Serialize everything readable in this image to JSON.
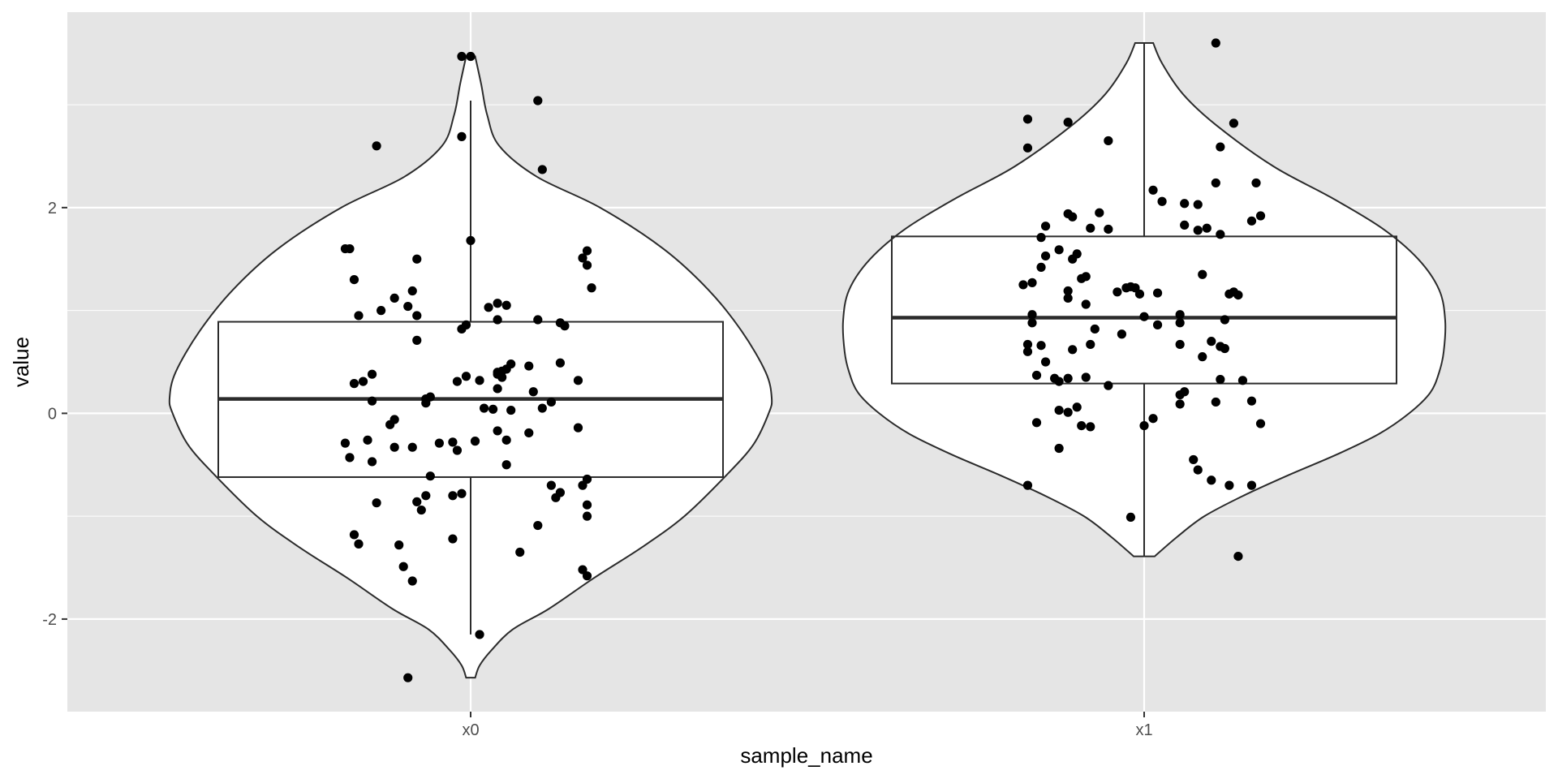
{
  "chart_data": {
    "type": "violin",
    "overlays": [
      "boxplot",
      "jitter"
    ],
    "xlabel": "sample_name",
    "ylabel": "value",
    "categories": [
      "x0",
      "x1"
    ],
    "ylim": [
      -2.9,
      3.9
    ],
    "yticks": [
      -2,
      0,
      2
    ],
    "grid": true,
    "legend": "none",
    "colors": {
      "panel": "#e5e5e5",
      "grid": "#ffffff",
      "outline": "#2b2b2b",
      "points": "#000000",
      "fill": "#ffffff",
      "tick_text": "#4d4d4d"
    },
    "groups": [
      {
        "name": "x0",
        "box": {
          "q1": -0.62,
          "median": 0.14,
          "q3": 0.89,
          "whisker_low": -2.15,
          "whisker_high": 3.04
        },
        "violin": {
          "y": [
            -2.57,
            -2.45,
            -2.3,
            -2.1,
            -1.9,
            -1.6,
            -1.3,
            -1.0,
            -0.6,
            -0.3,
            0.0,
            0.15,
            0.4,
            0.8,
            1.2,
            1.6,
            2.0,
            2.3,
            2.6,
            2.9,
            3.2,
            3.47
          ],
          "width": [
            0.015,
            0.03,
            0.07,
            0.14,
            0.26,
            0.41,
            0.57,
            0.71,
            0.85,
            0.94,
            0.99,
            1.0,
            0.98,
            0.9,
            0.79,
            0.64,
            0.43,
            0.22,
            0.095,
            0.055,
            0.035,
            0.015
          ]
        },
        "points": [
          [
            -0.14,
            -2.57
          ],
          [
            0.02,
            -2.15
          ],
          [
            -0.15,
            -1.49
          ],
          [
            -0.13,
            -1.63
          ],
          [
            -0.16,
            -1.28
          ],
          [
            -0.04,
            -1.22
          ],
          [
            -0.26,
            -1.18
          ],
          [
            -0.25,
            -1.27
          ],
          [
            -0.21,
            -0.87
          ],
          [
            -0.12,
            -0.86
          ],
          [
            -0.11,
            -0.94
          ],
          [
            -0.1,
            -0.8
          ],
          [
            -0.04,
            -0.8
          ],
          [
            -0.02,
            -0.78
          ],
          [
            -0.09,
            -0.61
          ],
          [
            0.11,
            -1.35
          ],
          [
            0.15,
            -1.09
          ],
          [
            0.18,
            -0.7
          ],
          [
            0.19,
            -0.82
          ],
          [
            0.2,
            -0.77
          ],
          [
            0.25,
            -0.7
          ],
          [
            0.26,
            -0.64
          ],
          [
            0.26,
            -0.89
          ],
          [
            0.26,
            -1.0
          ],
          [
            0.25,
            -1.52
          ],
          [
            0.26,
            -1.58
          ],
          [
            -0.28,
            -0.29
          ],
          [
            -0.27,
            -0.43
          ],
          [
            -0.23,
            -0.26
          ],
          [
            -0.22,
            -0.47
          ],
          [
            -0.17,
            -0.33
          ],
          [
            -0.17,
            -0.06
          ],
          [
            -0.18,
            -0.11
          ],
          [
            -0.13,
            -0.33
          ],
          [
            -0.07,
            -0.29
          ],
          [
            -0.04,
            -0.28
          ],
          [
            -0.03,
            -0.36
          ],
          [
            0.01,
            -0.27
          ],
          [
            0.06,
            -0.17
          ],
          [
            0.08,
            -0.26
          ],
          [
            0.08,
            -0.5
          ],
          [
            0.13,
            -0.19
          ],
          [
            0.24,
            -0.14
          ],
          [
            -0.26,
            0.29
          ],
          [
            -0.24,
            0.31
          ],
          [
            -0.22,
            0.38
          ],
          [
            -0.22,
            0.12
          ],
          [
            -0.1,
            0.1
          ],
          [
            -0.1,
            0.14
          ],
          [
            -0.09,
            0.16
          ],
          [
            -0.03,
            0.31
          ],
          [
            -0.01,
            0.36
          ],
          [
            0.02,
            0.32
          ],
          [
            0.03,
            0.05
          ],
          [
            0.05,
            0.04
          ],
          [
            0.06,
            0.24
          ],
          [
            0.06,
            0.4
          ],
          [
            0.06,
            0.38
          ],
          [
            0.07,
            0.35
          ],
          [
            0.07,
            0.41
          ],
          [
            0.08,
            0.43
          ],
          [
            0.09,
            0.48
          ],
          [
            0.09,
            0.03
          ],
          [
            0.13,
            0.46
          ],
          [
            0.14,
            0.21
          ],
          [
            0.16,
            0.05
          ],
          [
            0.18,
            0.11
          ],
          [
            0.2,
            0.49
          ],
          [
            0.24,
            0.32
          ],
          [
            -0.25,
            0.95
          ],
          [
            -0.28,
            1.6
          ],
          [
            -0.27,
            1.6
          ],
          [
            -0.26,
            1.3
          ],
          [
            -0.2,
            1.0
          ],
          [
            -0.17,
            1.12
          ],
          [
            -0.14,
            1.04
          ],
          [
            -0.13,
            1.19
          ],
          [
            -0.12,
            0.95
          ],
          [
            -0.12,
            0.71
          ],
          [
            -0.02,
            0.82
          ],
          [
            -0.01,
            0.86
          ],
          [
            0.0,
            1.68
          ],
          [
            -0.12,
            1.5
          ],
          [
            0.06,
            0.91
          ],
          [
            0.06,
            1.07
          ],
          [
            0.08,
            1.05
          ],
          [
            0.04,
            1.03
          ],
          [
            0.15,
            0.91
          ],
          [
            0.2,
            0.88
          ],
          [
            0.21,
            0.85
          ],
          [
            0.26,
            1.44
          ],
          [
            0.25,
            1.51
          ],
          [
            0.26,
            1.58
          ],
          [
            0.27,
            1.22
          ],
          [
            -0.02,
            2.69
          ],
          [
            -0.21,
            2.6
          ],
          [
            0.15,
            3.04
          ],
          [
            0.16,
            2.37
          ],
          [
            -0.02,
            3.47
          ],
          [
            0.0,
            3.47
          ]
        ]
      },
      {
        "name": "x1",
        "box": {
          "q1": 0.29,
          "median": 0.93,
          "q3": 1.72,
          "whisker_low": -1.39,
          "whisker_high": 3.6
        },
        "violin": {
          "y": [
            -1.39,
            -1.2,
            -1.0,
            -0.8,
            -0.6,
            -0.4,
            -0.2,
            0.0,
            0.2,
            0.4,
            0.6,
            0.9,
            1.2,
            1.5,
            1.8,
            2.1,
            2.4,
            2.8,
            3.1,
            3.4,
            3.6
          ],
          "width": [
            0.035,
            0.11,
            0.2,
            0.33,
            0.48,
            0.64,
            0.78,
            0.88,
            0.95,
            0.98,
            0.995,
            1.0,
            0.98,
            0.91,
            0.79,
            0.62,
            0.43,
            0.24,
            0.13,
            0.06,
            0.03
          ]
        },
        "points": [
          [
            0.21,
            -1.39
          ],
          [
            -0.03,
            -1.01
          ],
          [
            -0.26,
            -0.7
          ],
          [
            0.12,
            -0.55
          ],
          [
            0.15,
            -0.65
          ],
          [
            0.19,
            -0.7
          ],
          [
            0.24,
            -0.7
          ],
          [
            0.11,
            -0.45
          ],
          [
            -0.24,
            -0.09
          ],
          [
            -0.19,
            -0.34
          ],
          [
            -0.14,
            -0.12
          ],
          [
            -0.12,
            -0.13
          ],
          [
            0.0,
            -0.12
          ],
          [
            0.02,
            -0.05
          ],
          [
            0.26,
            -0.1
          ],
          [
            -0.19,
            0.03
          ],
          [
            -0.17,
            0.01
          ],
          [
            -0.15,
            0.06
          ],
          [
            -0.24,
            0.37
          ],
          [
            -0.2,
            0.34
          ],
          [
            -0.19,
            0.31
          ],
          [
            -0.17,
            0.34
          ],
          [
            -0.13,
            0.35
          ],
          [
            -0.08,
            0.27
          ],
          [
            0.08,
            0.09
          ],
          [
            0.08,
            0.18
          ],
          [
            0.09,
            0.21
          ],
          [
            0.16,
            0.11
          ],
          [
            0.24,
            0.12
          ],
          [
            0.17,
            0.33
          ],
          [
            0.22,
            0.32
          ],
          [
            -0.26,
            0.67
          ],
          [
            -0.26,
            0.6
          ],
          [
            -0.23,
            0.66
          ],
          [
            -0.22,
            0.5
          ],
          [
            -0.16,
            0.62
          ],
          [
            -0.12,
            0.67
          ],
          [
            -0.05,
            0.77
          ],
          [
            -0.25,
            0.88
          ],
          [
            -0.25,
            0.96
          ],
          [
            -0.11,
            0.82
          ],
          [
            0.0,
            0.94
          ],
          [
            0.03,
            0.86
          ],
          [
            0.08,
            0.96
          ],
          [
            0.08,
            0.88
          ],
          [
            0.08,
            0.67
          ],
          [
            0.13,
            0.55
          ],
          [
            0.15,
            0.7
          ],
          [
            0.17,
            0.65
          ],
          [
            0.18,
            0.63
          ],
          [
            0.18,
            0.91
          ],
          [
            -0.27,
            1.25
          ],
          [
            -0.25,
            1.27
          ],
          [
            -0.23,
            1.42
          ],
          [
            -0.22,
            1.53
          ],
          [
            -0.19,
            1.59
          ],
          [
            -0.17,
            1.12
          ],
          [
            -0.17,
            1.19
          ],
          [
            -0.16,
            1.5
          ],
          [
            -0.15,
            1.55
          ],
          [
            -0.14,
            1.31
          ],
          [
            -0.13,
            1.33
          ],
          [
            -0.13,
            1.06
          ],
          [
            -0.06,
            1.18
          ],
          [
            -0.04,
            1.22
          ],
          [
            -0.03,
            1.23
          ],
          [
            -0.02,
            1.22
          ],
          [
            -0.01,
            1.16
          ],
          [
            0.03,
            1.17
          ],
          [
            0.19,
            1.16
          ],
          [
            0.2,
            1.18
          ],
          [
            0.21,
            1.15
          ],
          [
            0.13,
            1.35
          ],
          [
            -0.23,
            1.71
          ],
          [
            -0.22,
            1.82
          ],
          [
            -0.17,
            1.94
          ],
          [
            -0.16,
            1.91
          ],
          [
            -0.12,
            1.8
          ],
          [
            -0.1,
            1.95
          ],
          [
            -0.08,
            1.79
          ],
          [
            0.02,
            2.17
          ],
          [
            0.04,
            2.06
          ],
          [
            0.09,
            2.04
          ],
          [
            0.12,
            2.03
          ],
          [
            0.09,
            1.83
          ],
          [
            0.12,
            1.78
          ],
          [
            0.14,
            1.8
          ],
          [
            0.17,
            1.74
          ],
          [
            0.24,
            1.87
          ],
          [
            0.26,
            1.92
          ],
          [
            0.16,
            2.24
          ],
          [
            0.25,
            2.24
          ],
          [
            0.17,
            2.59
          ],
          [
            -0.26,
            2.58
          ],
          [
            -0.26,
            2.86
          ],
          [
            -0.17,
            2.83
          ],
          [
            -0.08,
            2.65
          ],
          [
            0.2,
            2.82
          ],
          [
            0.16,
            3.6
          ]
        ]
      }
    ]
  }
}
